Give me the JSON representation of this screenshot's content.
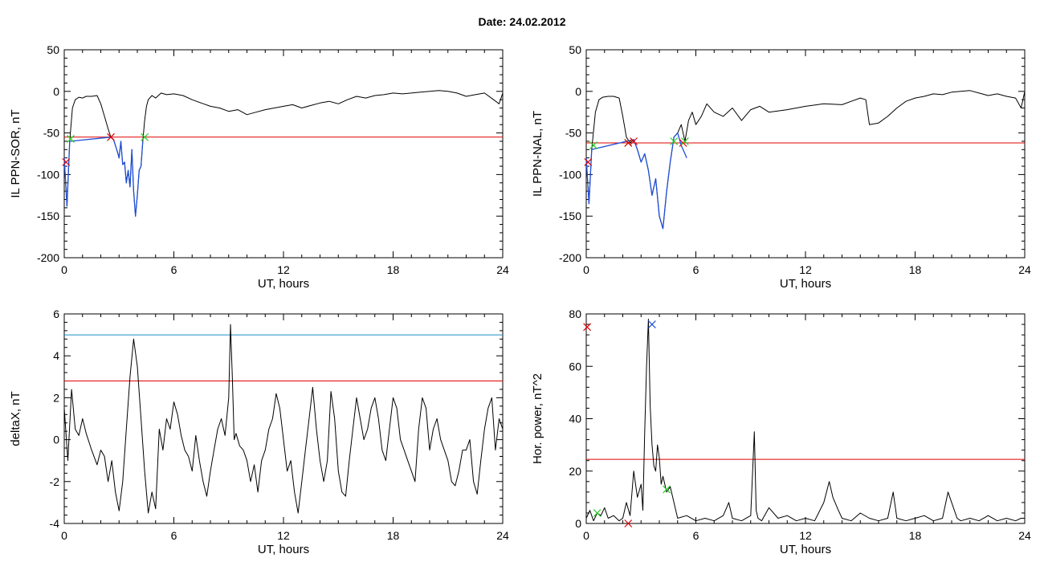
{
  "figure": {
    "title": "Date:  24.02.2012"
  },
  "chart_data": [
    {
      "type": "line",
      "id": "sor",
      "xlabel": "UT, hours",
      "ylabel": "IL PPN-SOR, nT",
      "xlim": [
        0,
        24
      ],
      "ylim": [
        -200,
        50
      ],
      "xticks": [
        0,
        6,
        12,
        18,
        24
      ],
      "yticks": [
        -200,
        -150,
        -100,
        -50,
        0,
        50
      ],
      "grid": false,
      "series": [
        {
          "role": "black",
          "color": "#000000",
          "x": [
            0.0,
            0.15,
            0.3,
            0.45,
            0.6,
            0.8,
            1.0,
            1.2,
            1.5,
            1.8,
            2.0,
            2.2,
            2.4,
            2.55,
            2.7,
            2.8,
            2.9,
            3.0,
            3.1,
            3.2,
            3.3,
            3.4,
            3.5,
            3.6,
            3.7,
            3.8,
            3.9,
            4.0,
            4.1,
            4.2,
            4.3,
            4.4,
            4.5,
            4.6,
            4.8,
            5.0,
            5.3,
            5.6,
            6.0,
            6.5,
            7.0,
            7.5,
            8.0,
            8.5,
            9.0,
            9.5,
            10.0,
            10.5,
            11.0,
            11.5,
            12.0,
            12.5,
            13.0,
            13.5,
            14.0,
            14.5,
            15.0,
            15.5,
            16.0,
            16.5,
            17.0,
            17.5,
            18.0,
            18.5,
            19.0,
            19.5,
            20.0,
            20.5,
            21.0,
            21.5,
            22.0,
            22.5,
            23.0,
            23.5,
            23.8,
            24.0
          ],
          "y": [
            -80,
            -138,
            -60,
            -20,
            -10,
            -7,
            -8,
            -6,
            -6,
            -5,
            -15,
            -30,
            -45,
            -55,
            -58,
            -65,
            -72,
            -80,
            -60,
            -88,
            -85,
            -110,
            -95,
            -115,
            -70,
            -120,
            -150,
            -125,
            -95,
            -90,
            -60,
            -35,
            -18,
            -10,
            -5,
            -8,
            -2,
            -4,
            -3,
            -5,
            -10,
            -14,
            -18,
            -20,
            -24,
            -22,
            -28,
            -25,
            -22,
            -20,
            -18,
            -16,
            -20,
            -17,
            -14,
            -12,
            -15,
            -10,
            -6,
            -8,
            -5,
            -4,
            -2,
            -3,
            -2,
            -1,
            0,
            1,
            0,
            -2,
            -6,
            -4,
            -2,
            -10,
            -15,
            -2
          ]
        },
        {
          "role": "blue",
          "color": "#1f4fd6",
          "x": [
            0.0,
            0.15,
            0.3,
            2.55,
            2.7,
            2.8,
            2.9,
            3.0,
            3.1,
            3.2,
            3.3,
            3.4,
            3.5,
            3.6,
            3.7,
            3.8,
            3.9,
            4.0,
            4.1,
            4.2,
            4.3
          ],
          "y": [
            -80,
            -138,
            -60,
            -55,
            -58,
            -65,
            -72,
            -80,
            -60,
            -88,
            -85,
            -110,
            -95,
            -115,
            -70,
            -120,
            -150,
            -125,
            -95,
            -90,
            -60
          ]
        }
      ],
      "hlines": [
        {
          "y": -55,
          "color": "#e00000"
        }
      ],
      "markers": [
        {
          "x": 0.1,
          "y": -85,
          "color": "#e00000"
        },
        {
          "x": 0.35,
          "y": -57,
          "color": "#22cc22"
        },
        {
          "x": 2.55,
          "y": -55,
          "color": "#e00000"
        },
        {
          "x": 4.4,
          "y": -55,
          "color": "#22cc22"
        }
      ]
    },
    {
      "type": "line",
      "id": "nal",
      "xlabel": "UT, hours",
      "ylabel": "IL PPN-NAL, nT",
      "xlim": [
        0,
        24
      ],
      "ylim": [
        -200,
        50
      ],
      "xticks": [
        0,
        6,
        12,
        18,
        24
      ],
      "yticks": [
        -200,
        -150,
        -100,
        -50,
        0,
        50
      ],
      "grid": false,
      "series": [
        {
          "role": "black",
          "color": "#000000",
          "x": [
            0.0,
            0.15,
            0.3,
            0.5,
            0.7,
            0.9,
            1.2,
            1.5,
            1.8,
            2.0,
            2.2,
            2.4,
            2.6,
            2.8,
            3.0,
            3.2,
            3.4,
            3.6,
            3.8,
            4.0,
            4.2,
            4.4,
            4.6,
            4.8,
            5.0,
            5.2,
            5.4,
            5.6,
            5.8,
            6.0,
            6.3,
            6.6,
            7.0,
            7.5,
            8.0,
            8.5,
            9.0,
            9.5,
            10.0,
            11.0,
            12.0,
            13.0,
            14.0,
            14.5,
            15.0,
            15.3,
            15.5,
            16.0,
            16.5,
            17.0,
            17.5,
            18.0,
            18.5,
            19.0,
            19.5,
            20.0,
            20.5,
            21.0,
            21.5,
            22.0,
            22.5,
            23.0,
            23.5,
            23.8,
            24.0
          ],
          "y": [
            -80,
            -135,
            -70,
            -25,
            -10,
            -7,
            -6,
            -6,
            -8,
            -30,
            -55,
            -62,
            -58,
            -70,
            -85,
            -75,
            -95,
            -125,
            -105,
            -150,
            -165,
            -120,
            -85,
            -55,
            -50,
            -40,
            -60,
            -35,
            -25,
            -40,
            -30,
            -15,
            -25,
            -30,
            -20,
            -35,
            -22,
            -18,
            -25,
            -22,
            -18,
            -15,
            -16,
            -12,
            -8,
            -10,
            -40,
            -38,
            -30,
            -20,
            -12,
            -8,
            -6,
            -3,
            -4,
            -1,
            0,
            1,
            -2,
            -5,
            -3,
            -6,
            -8,
            -20,
            0
          ]
        },
        {
          "role": "blue",
          "color": "#1f4fd6",
          "x": [
            0.0,
            0.15,
            0.3,
            2.6,
            2.8,
            3.0,
            3.2,
            3.4,
            3.6,
            3.8,
            4.0,
            4.2,
            4.4,
            4.6,
            4.8,
            5.0,
            5.2,
            5.4,
            5.5
          ],
          "y": [
            -80,
            -135,
            -70,
            -58,
            -70,
            -85,
            -75,
            -95,
            -125,
            -105,
            -150,
            -165,
            -120,
            -85,
            -55,
            -50,
            -65,
            -75,
            -80
          ]
        }
      ],
      "hlines": [
        {
          "y": -62,
          "color": "#e00000"
        }
      ],
      "markers": [
        {
          "x": 0.1,
          "y": -85,
          "color": "#e00000"
        },
        {
          "x": 0.4,
          "y": -65,
          "color": "#22cc22"
        },
        {
          "x": 2.3,
          "y": -62,
          "color": "#22aa22"
        },
        {
          "x": 2.3,
          "y": -62,
          "color": "#e00000"
        },
        {
          "x": 2.6,
          "y": -60,
          "color": "#e00000"
        },
        {
          "x": 4.8,
          "y": -60,
          "color": "#22cc22"
        },
        {
          "x": 5.3,
          "y": -62,
          "color": "#e00000"
        },
        {
          "x": 5.4,
          "y": -60,
          "color": "#22cc22"
        }
      ]
    },
    {
      "type": "line",
      "id": "deltax",
      "xlabel": "UT, hours",
      "ylabel": "deltaX, nT",
      "xlim": [
        0,
        24
      ],
      "ylim": [
        -4,
        6
      ],
      "xticks": [
        0,
        6,
        12,
        18,
        24
      ],
      "yticks": [
        -4,
        -2,
        0,
        2,
        4,
        6
      ],
      "grid": false,
      "series": [
        {
          "role": "black",
          "color": "#000000",
          "x": [
            0.0,
            0.2,
            0.4,
            0.6,
            0.8,
            1.0,
            1.2,
            1.5,
            1.8,
            2.0,
            2.2,
            2.4,
            2.6,
            2.8,
            3.0,
            3.2,
            3.4,
            3.6,
            3.8,
            4.0,
            4.2,
            4.4,
            4.6,
            4.8,
            5.0,
            5.2,
            5.4,
            5.6,
            5.8,
            6.0,
            6.2,
            6.4,
            6.6,
            6.8,
            7.0,
            7.2,
            7.4,
            7.6,
            7.8,
            8.0,
            8.2,
            8.4,
            8.6,
            8.8,
            9.0,
            9.1,
            9.2,
            9.3,
            9.4,
            9.6,
            9.8,
            10.0,
            10.2,
            10.4,
            10.6,
            10.8,
            11.0,
            11.2,
            11.4,
            11.6,
            11.8,
            12.0,
            12.2,
            12.4,
            12.6,
            12.8,
            13.0,
            13.2,
            13.4,
            13.6,
            13.8,
            14.0,
            14.2,
            14.4,
            14.6,
            14.8,
            15.0,
            15.2,
            15.4,
            15.6,
            15.8,
            16.0,
            16.2,
            16.4,
            16.6,
            16.8,
            17.0,
            17.2,
            17.4,
            17.6,
            17.8,
            18.0,
            18.2,
            18.4,
            18.6,
            18.8,
            19.0,
            19.2,
            19.4,
            19.6,
            19.8,
            20.0,
            20.2,
            20.4,
            20.6,
            20.8,
            21.0,
            21.2,
            21.4,
            21.6,
            21.8,
            22.0,
            22.2,
            22.4,
            22.6,
            22.8,
            23.0,
            23.2,
            23.4,
            23.6,
            23.8,
            24.0
          ],
          "y": [
            1.5,
            -1.0,
            2.4,
            0.5,
            0.2,
            1.0,
            0.3,
            -0.5,
            -1.2,
            -0.5,
            -0.8,
            -2.0,
            -1.0,
            -2.5,
            -3.4,
            -2.0,
            0.5,
            3.0,
            4.8,
            3.5,
            1.0,
            -1.5,
            -3.5,
            -2.5,
            -3.3,
            0.5,
            -0.5,
            1.0,
            0.5,
            1.8,
            1.2,
            0.2,
            -0.5,
            -0.8,
            -1.5,
            0.2,
            -1.0,
            -2.0,
            -2.7,
            -1.5,
            -0.5,
            0.5,
            1.0,
            0.2,
            2.0,
            5.5,
            3.0,
            0.0,
            0.3,
            -0.3,
            -0.5,
            -1.0,
            -2.0,
            -1.2,
            -2.5,
            -1.0,
            -0.5,
            0.5,
            1.0,
            2.2,
            1.5,
            0.0,
            -1.5,
            -1.0,
            -2.5,
            -3.5,
            -2.0,
            -0.5,
            1.0,
            2.5,
            0.5,
            -1.0,
            -2.0,
            -1.0,
            2.3,
            1.0,
            -1.5,
            -2.5,
            -2.7,
            -1.0,
            0.5,
            2.0,
            1.0,
            0.0,
            0.5,
            1.5,
            2.0,
            1.0,
            -0.5,
            -1.0,
            0.5,
            2.0,
            1.5,
            0.0,
            -0.5,
            -1.0,
            -1.5,
            -2.0,
            0.5,
            2.0,
            1.5,
            -0.5,
            0.5,
            1.0,
            0.0,
            -0.5,
            -1.0,
            -2.0,
            -2.2,
            -1.5,
            -0.5,
            -0.5,
            0.0,
            -2.0,
            -2.6,
            -1.0,
            0.5,
            1.5,
            2.0,
            -0.5,
            1.0,
            0.5
          ]
        }
      ],
      "hlines": [
        {
          "y": 5.0,
          "color": "#1a8fc8"
        },
        {
          "y": 2.8,
          "color": "#e00000"
        }
      ],
      "markers": []
    },
    {
      "type": "line",
      "id": "power",
      "xlabel": "UT, hours",
      "ylabel": "Hor. power, nT^2",
      "xlim": [
        0,
        24
      ],
      "ylim": [
        0,
        80
      ],
      "xticks": [
        0,
        6,
        12,
        18,
        24
      ],
      "yticks": [
        0,
        20,
        40,
        60,
        80
      ],
      "grid": false,
      "series": [
        {
          "role": "black",
          "color": "#000000",
          "x": [
            0.0,
            0.2,
            0.4,
            0.6,
            0.8,
            1.0,
            1.2,
            1.5,
            1.8,
            2.0,
            2.2,
            2.4,
            2.6,
            2.8,
            3.0,
            3.1,
            3.2,
            3.3,
            3.4,
            3.5,
            3.6,
            3.7,
            3.8,
            3.9,
            4.0,
            4.1,
            4.2,
            4.4,
            4.6,
            4.8,
            5.0,
            5.5,
            6.0,
            6.5,
            7.0,
            7.5,
            7.8,
            8.0,
            8.5,
            9.0,
            9.2,
            9.3,
            9.4,
            9.6,
            10.0,
            10.5,
            11.0,
            11.5,
            12.0,
            12.5,
            13.0,
            13.3,
            13.5,
            13.8,
            14.0,
            14.5,
            15.0,
            15.5,
            16.0,
            16.5,
            16.8,
            17.0,
            17.5,
            18.0,
            18.5,
            19.0,
            19.5,
            19.8,
            20.0,
            20.3,
            20.5,
            21.0,
            21.5,
            22.0,
            22.5,
            23.0,
            23.5,
            23.8,
            24.0
          ],
          "y": [
            2,
            5,
            1,
            4,
            3,
            6,
            2,
            3,
            1,
            2,
            8,
            3,
            20,
            10,
            15,
            5,
            35,
            60,
            78,
            45,
            30,
            22,
            20,
            30,
            25,
            15,
            18,
            12,
            14,
            8,
            2,
            3,
            1,
            2,
            1,
            3,
            8,
            2,
            1,
            3,
            35,
            5,
            2,
            1,
            6,
            2,
            3,
            1,
            2,
            1,
            8,
            16,
            10,
            5,
            2,
            1,
            4,
            2,
            1,
            2,
            12,
            2,
            1,
            2,
            3,
            1,
            2,
            12,
            8,
            2,
            1,
            2,
            1,
            3,
            1,
            2,
            1,
            2,
            2
          ]
        }
      ],
      "hlines": [
        {
          "y": 24.5,
          "color": "#e00000"
        }
      ],
      "markers": [
        {
          "x": 0.05,
          "y": 75,
          "color": "#e00000"
        },
        {
          "x": 0.6,
          "y": 4,
          "color": "#22cc22"
        },
        {
          "x": 2.3,
          "y": 0,
          "color": "#e00000"
        },
        {
          "x": 3.6,
          "y": 76,
          "color": "#1f4fd6"
        },
        {
          "x": 4.4,
          "y": 13,
          "color": "#22cc22"
        }
      ]
    }
  ]
}
